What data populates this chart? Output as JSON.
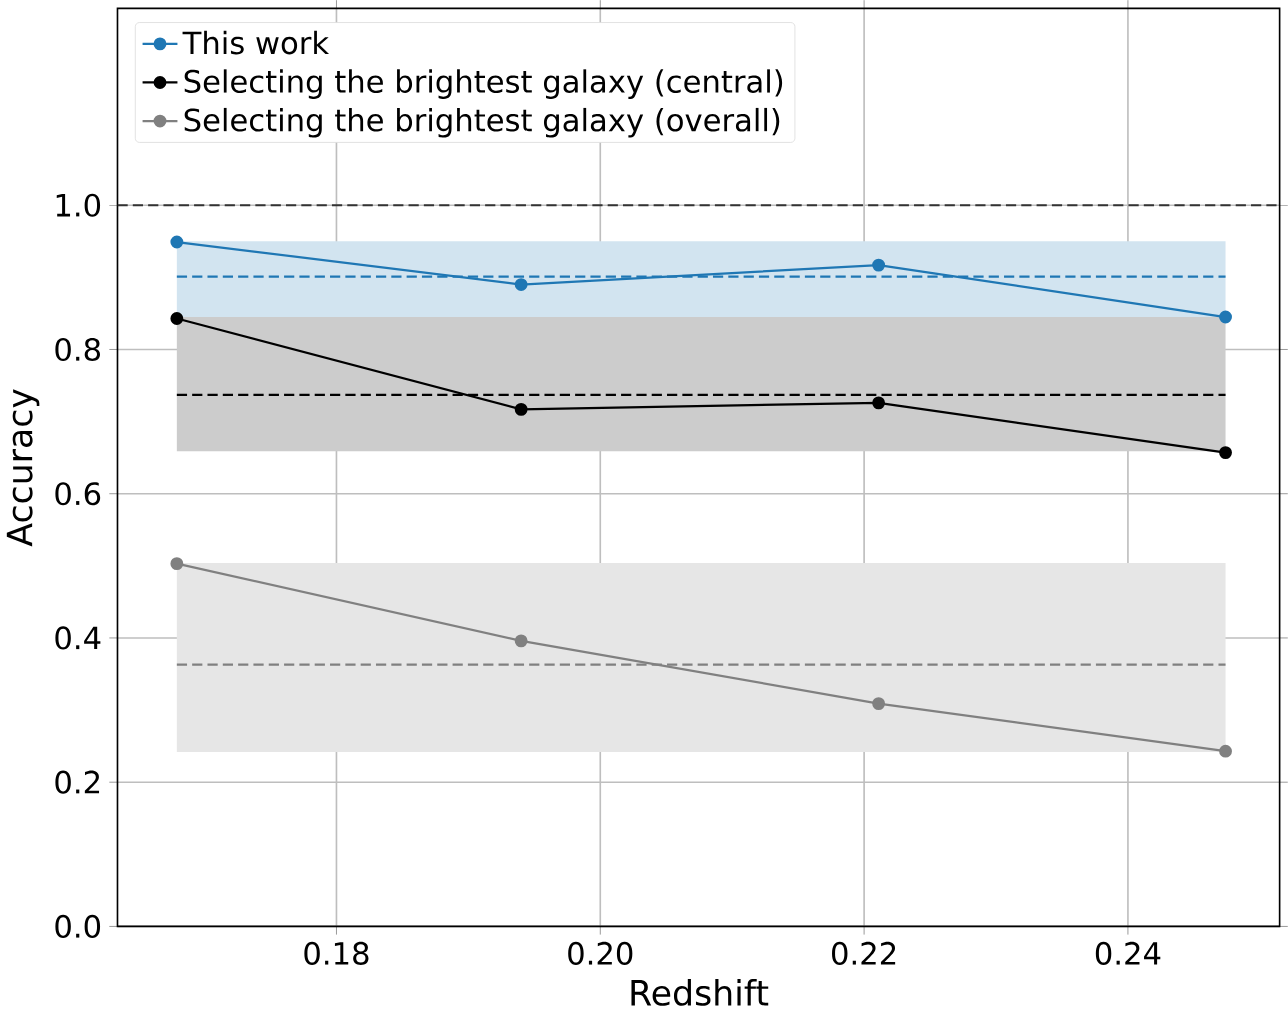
{
  "chart_data": {
    "type": "line",
    "xlabel": "Redshift",
    "ylabel": "Accuracy",
    "xlim": [
      0.1634,
      0.2515
    ],
    "ylim": [
      0,
      1.273
    ],
    "xticks": [
      {
        "value": 0.18,
        "label": "0.18"
      },
      {
        "value": 0.2,
        "label": "0.20"
      },
      {
        "value": 0.22,
        "label": "0.22"
      },
      {
        "value": 0.24,
        "label": "0.24"
      }
    ],
    "yticks": [
      {
        "value": 0,
        "label": "0.0"
      },
      {
        "value": 0.2,
        "label": "0.2"
      },
      {
        "value": 0.4,
        "label": "0.4"
      },
      {
        "value": 0.6,
        "label": "0.6"
      },
      {
        "value": 0.8,
        "label": "0.8"
      },
      {
        "value": 1.0,
        "label": "1.0"
      }
    ],
    "x": [
      0.1679,
      0.194,
      0.2211,
      0.2474
    ],
    "series": [
      {
        "name": "This work",
        "color": "#1f77b4",
        "values": [
          0.949,
          0.89,
          0.917,
          0.845
        ],
        "lower": [
          0.845,
          0.845,
          0.845,
          0.845
        ],
        "upper": [
          0.95,
          0.95,
          0.95,
          0.95
        ]
      },
      {
        "name": "Selecting the brightest galaxy (central)",
        "color": "#000000",
        "values": [
          0.843,
          0.717,
          0.726,
          0.657
        ],
        "lower": [
          0.659,
          0.659,
          0.659,
          0.659
        ],
        "upper": [
          0.845,
          0.845,
          0.845,
          0.845
        ]
      },
      {
        "name": "Selecting the brightest galaxy (overall)",
        "color": "#808080",
        "values": [
          0.503,
          0.396,
          0.309,
          0.243
        ],
        "lower": [
          0.242,
          0.242,
          0.242,
          0.242
        ],
        "upper": [
          0.504,
          0.504,
          0.504,
          0.504
        ]
      },
      {
        "color": "#1f77b4",
        "values": [
          0.901,
          0.901,
          0.901,
          0.901
        ],
        "line_style": "dashed",
        "marker": "none"
      },
      {
        "color": "#000000",
        "values": [
          0.737,
          0.737,
          0.737,
          0.737
        ],
        "line_style": "dashed",
        "marker": "none"
      },
      {
        "color": "#808080",
        "values": [
          0.363,
          0.363,
          0.363,
          0.363
        ],
        "line_style": "dashed",
        "marker": "none"
      }
    ],
    "ref_lines": [
      {
        "axis": "y",
        "value": 1.0,
        "color": "#333333",
        "line_style": "dashed"
      }
    ],
    "grid": true,
    "legend": "top left",
    "marker": "circle",
    "line_style": "solid"
  }
}
